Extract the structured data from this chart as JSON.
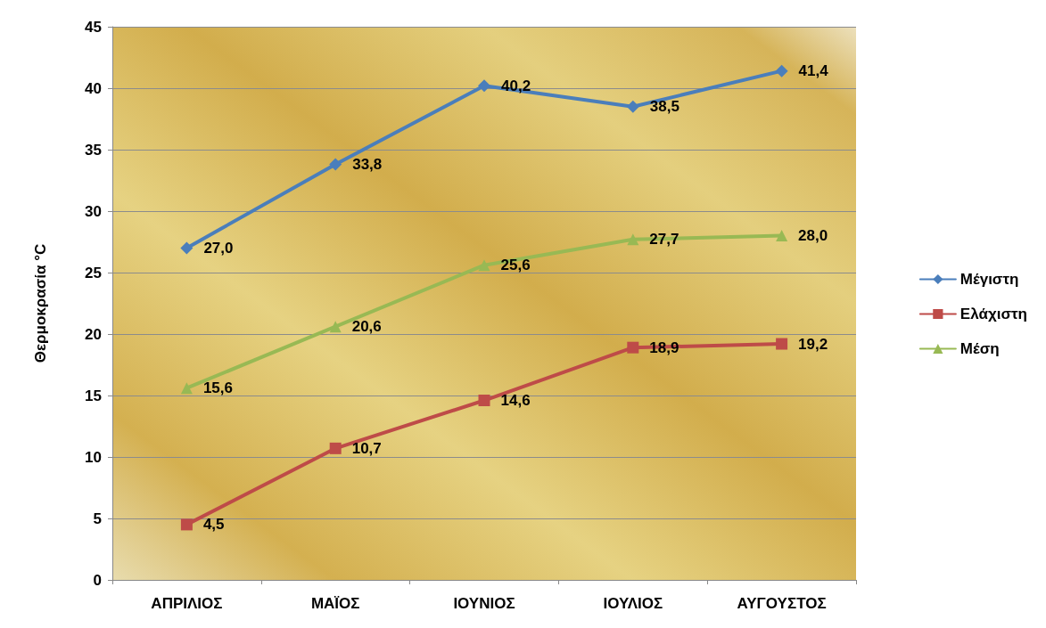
{
  "chart_data": {
    "type": "line",
    "ylabel": "Θερμοκρασία °C",
    "categories": [
      "ΑΠΡΙΛΙΟΣ",
      "ΜΑΪΟΣ",
      "ΙΟΥΝΙΟΣ",
      "ΙΟΥΛΙΟΣ",
      "ΑΥΓΟΥΣΤΟΣ"
    ],
    "series": [
      {
        "name": "Μέγιστη",
        "color": "#4a7ebb",
        "marker": "diamond",
        "values": [
          27.0,
          33.8,
          40.2,
          38.5,
          41.4
        ],
        "value_labels": [
          "27,0",
          "33,8",
          "40,2",
          "38,5",
          "41,4"
        ]
      },
      {
        "name": "Ελάχιστη",
        "color": "#be4b48",
        "marker": "square",
        "values": [
          4.5,
          10.7,
          14.6,
          18.9,
          19.2
        ],
        "value_labels": [
          "4,5",
          "10,7",
          "14,6",
          "18,9",
          "19,2"
        ]
      },
      {
        "name": "Μέση",
        "color": "#98b954",
        "marker": "triangle",
        "values": [
          15.6,
          20.6,
          25.6,
          27.7,
          28.0
        ],
        "value_labels": [
          "15,6",
          "20,6",
          "25,6",
          "27,7",
          "28,0"
        ]
      }
    ],
    "ylim": [
      0,
      45
    ],
    "yticks": [
      0,
      5,
      10,
      15,
      20,
      25,
      30,
      35,
      40,
      45
    ],
    "grid": "y",
    "legend": "right"
  }
}
